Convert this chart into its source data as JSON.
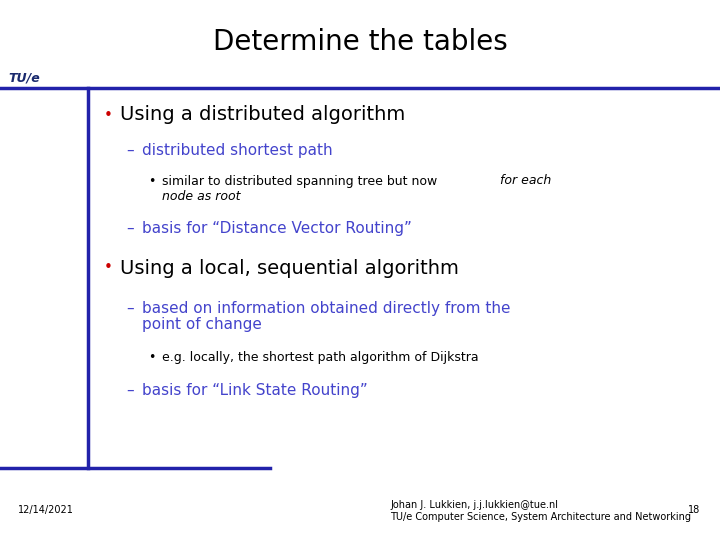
{
  "title": "Determine the tables",
  "title_fontsize": 20,
  "title_color": "#000000",
  "background_color": "#ffffff",
  "header_line_color": "#2222aa",
  "footer_line_color": "#2222aa",
  "tue_text": "TU/e",
  "tue_color": "#1a2a6e",
  "bullet1_text": "Using a distributed algorithm",
  "bullet1_color": "#000000",
  "bullet1_dot_color": "#cc0000",
  "sub1a_text": "distributed shortest path",
  "sub1a_color": "#4444cc",
  "sub1a1_color": "#000000",
  "sub1b_text": "basis for “Distance Vector Routing”",
  "sub1b_color": "#4444cc",
  "bullet2_text": "Using a local, sequential algorithm",
  "bullet2_color": "#000000",
  "bullet2_dot_color": "#cc0000",
  "sub2a_line1": "based on information obtained directly from the",
  "sub2a_line2": "point of change",
  "sub2a_color": "#4444cc",
  "sub2a1_text": "e.g. locally, the shortest path algorithm of Dijkstra",
  "sub2a1_color": "#000000",
  "sub2b_text": "basis for “Link State Routing”",
  "sub2b_color": "#4444cc",
  "footer_date": "12/14/2021",
  "footer_center_line1": "Johan J. Lukkien, j.j.lukkien@tue.nl",
  "footer_center_line2": "TU/e Computer Science, System Architecture and Networking",
  "footer_page": "18",
  "footer_color": "#000000",
  "footer_fontsize": 7
}
